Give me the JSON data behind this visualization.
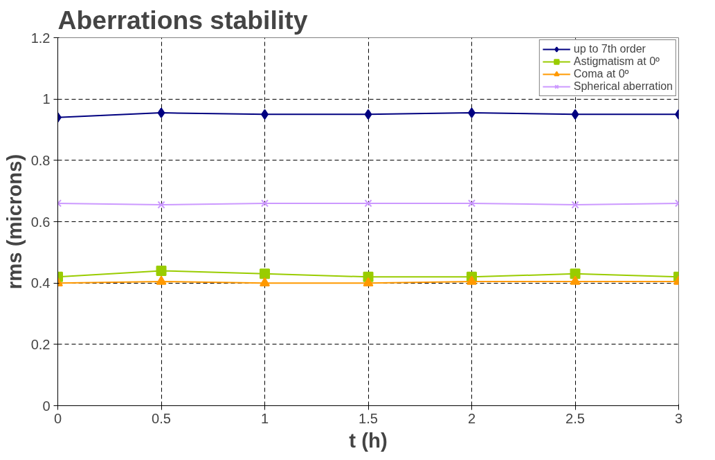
{
  "chart_data": {
    "type": "line",
    "title": "Aberrations stability",
    "xlabel": "t (h)",
    "ylabel": "rms (microns)",
    "x": [
      0,
      0.5,
      1,
      1.5,
      2,
      2.5,
      3
    ],
    "series": [
      {
        "name": "up to 7th order",
        "color": "#000080",
        "marker": "diamond",
        "values": [
          0.94,
          0.955,
          0.95,
          0.95,
          0.955,
          0.95,
          0.95
        ]
      },
      {
        "name": "Astigmatism at 0º",
        "color": "#99cc00",
        "marker": "square",
        "values": [
          0.42,
          0.44,
          0.43,
          0.42,
          0.42,
          0.43,
          0.42
        ]
      },
      {
        "name": "Coma at 0º",
        "color": "#ff9900",
        "marker": "triangle",
        "values": [
          0.4,
          0.405,
          0.4,
          0.4,
          0.405,
          0.405,
          0.405
        ]
      },
      {
        "name": "Spherical aberration",
        "color": "#cc99ff",
        "marker": "cross",
        "values": [
          0.66,
          0.655,
          0.66,
          0.66,
          0.66,
          0.655,
          0.66
        ]
      }
    ],
    "xlim": [
      0,
      3
    ],
    "xticks": [
      0,
      0.5,
      1,
      1.5,
      2,
      2.5,
      3
    ],
    "ylim": [
      0,
      1.2
    ],
    "yticks": [
      0,
      0.2,
      0.4,
      0.6,
      0.8,
      1,
      1.2
    ],
    "grid": true,
    "legend": "top right",
    "line_style": "solid"
  }
}
